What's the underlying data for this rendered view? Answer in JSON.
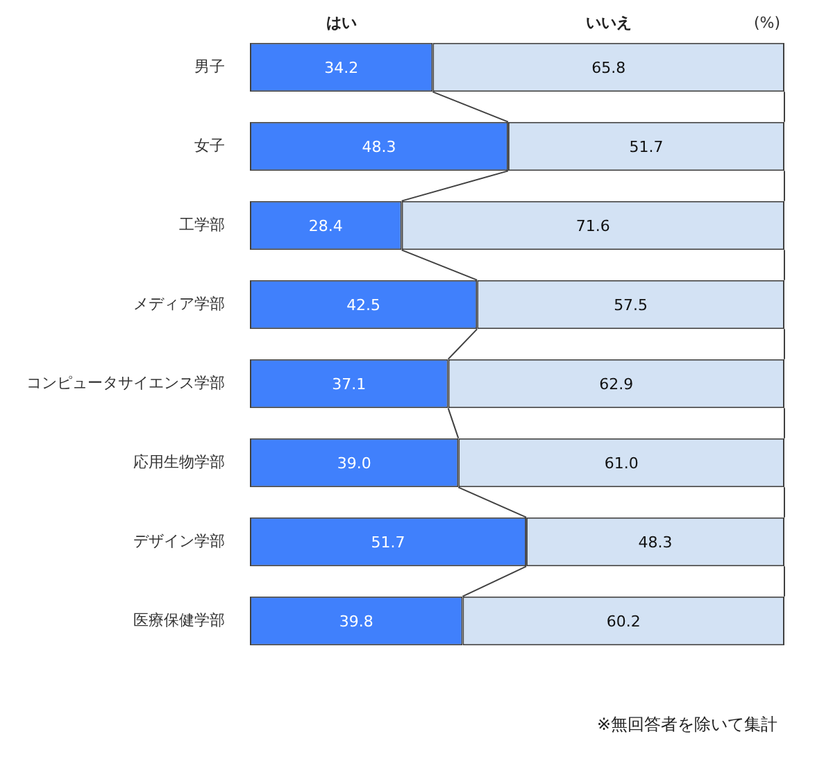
{
  "chart_data": {
    "type": "bar",
    "orientation": "horizontal",
    "stacked": true,
    "legend": "top",
    "tick_labels": "y",
    "xlabel": "(%)",
    "xlim": [
      0,
      100
    ],
    "categories": [
      "男子",
      "女子",
      "工学部",
      "メディア学部",
      "コンピュータサイエンス学部",
      "応用生物学部",
      "デザイン学部",
      "医療保健学部"
    ],
    "series": [
      {
        "name": "はい",
        "color": "#4080fc",
        "values": [
          34.2,
          48.3,
          28.4,
          42.5,
          37.1,
          39.0,
          51.7,
          39.8
        ],
        "value_labels": [
          "34.2",
          "48.3",
          "28.4",
          "42.5",
          "37.1",
          "39.0",
          "51.7",
          "39.8"
        ]
      },
      {
        "name": "いいえ",
        "color": "#d3e2f4",
        "values": [
          65.8,
          51.7,
          71.6,
          57.5,
          62.9,
          61.0,
          48.3,
          60.2
        ],
        "value_labels": [
          "65.8",
          "51.7",
          "71.6",
          "57.5",
          "62.9",
          "61.0",
          "48.3",
          "60.2"
        ]
      }
    ],
    "annotations": [
      "※無回答者を除いて集計"
    ]
  }
}
